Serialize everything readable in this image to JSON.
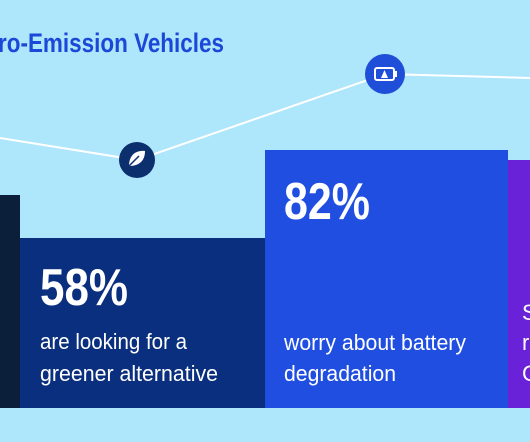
{
  "title": "ro-Emission Vehicles",
  "panels": [
    {
      "stat": "58%",
      "caption": [
        "are looking for a",
        "greener alternative"
      ]
    },
    {
      "stat": "82%",
      "caption": [
        "worry about battery",
        "degradation"
      ]
    },
    {
      "caption": [
        "S",
        "r",
        "C"
      ]
    }
  ]
}
